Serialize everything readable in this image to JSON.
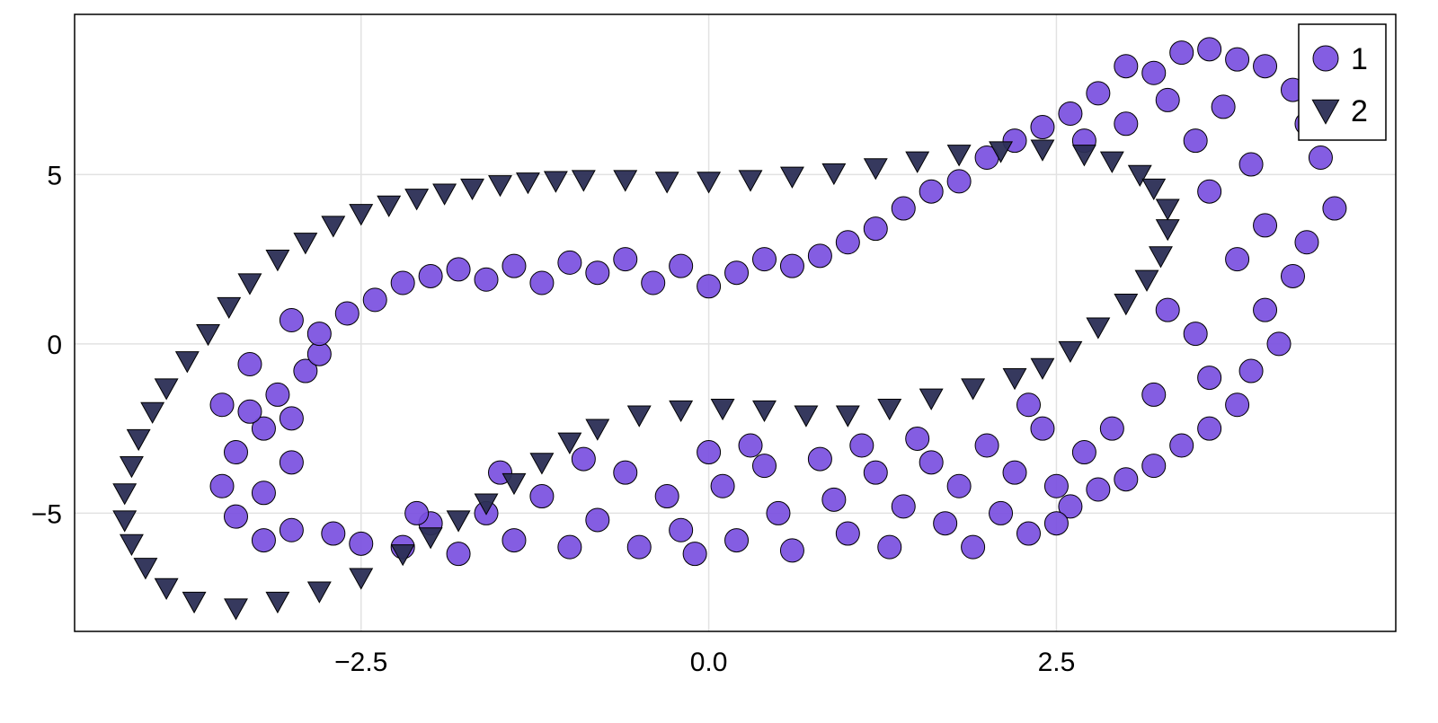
{
  "chart_data": {
    "type": "scatter",
    "title": "",
    "xlabel": "",
    "ylabel": "",
    "xlim": [
      -4.56,
      4.94
    ],
    "ylim": [
      -8.49,
      9.73
    ],
    "xticks": [
      -2.5,
      0.0,
      2.5
    ],
    "xtick_labels": [
      "−2.5",
      "0.0",
      "2.5"
    ],
    "yticks": [
      -5,
      0,
      5
    ],
    "ytick_labels": [
      "−5",
      "0",
      "5"
    ],
    "grid": true,
    "legend_position": "top-right",
    "series": [
      {
        "name": "1",
        "marker": "circle",
        "color": "#7a4fe0",
        "edge_color": "#000000",
        "points": [
          [
            -3.5,
            -1.8
          ],
          [
            -3.3,
            -0.6
          ],
          [
            -3.2,
            -2.5
          ],
          [
            -3.4,
            -3.2
          ],
          [
            -3.5,
            -4.2
          ],
          [
            -3.4,
            -5.1
          ],
          [
            -3.2,
            -4.4
          ],
          [
            -3.0,
            -3.5
          ],
          [
            -3.1,
            -1.5
          ],
          [
            -2.9,
            -0.8
          ],
          [
            -2.8,
            -0.3
          ],
          [
            -3.0,
            -5.5
          ],
          [
            -3.2,
            -5.8
          ],
          [
            -2.7,
            -5.6
          ],
          [
            -2.5,
            -5.9
          ],
          [
            -3.0,
            -2.2
          ],
          [
            -3.3,
            -2.0
          ],
          [
            -3.0,
            0.7
          ],
          [
            -2.8,
            0.3
          ],
          [
            -2.6,
            0.9
          ],
          [
            -2.4,
            1.3
          ],
          [
            -2.2,
            1.8
          ],
          [
            -2.0,
            2.0
          ],
          [
            -1.8,
            2.2
          ],
          [
            -1.6,
            1.9
          ],
          [
            -1.4,
            2.3
          ],
          [
            -1.2,
            1.8
          ],
          [
            -1.0,
            2.4
          ],
          [
            -0.8,
            2.1
          ],
          [
            -0.6,
            2.5
          ],
          [
            -0.4,
            1.8
          ],
          [
            -0.2,
            2.3
          ],
          [
            0.0,
            1.7
          ],
          [
            0.2,
            2.1
          ],
          [
            0.4,
            2.5
          ],
          [
            0.6,
            2.3
          ],
          [
            0.8,
            2.6
          ],
          [
            1.0,
            3.0
          ],
          [
            1.2,
            3.4
          ],
          [
            1.4,
            4.0
          ],
          [
            1.6,
            4.5
          ],
          [
            1.8,
            4.8
          ],
          [
            2.0,
            5.5
          ],
          [
            2.2,
            6.0
          ],
          [
            2.4,
            6.4
          ],
          [
            2.6,
            6.8
          ],
          [
            2.8,
            7.4
          ],
          [
            3.0,
            8.2
          ],
          [
            3.2,
            8.0
          ],
          [
            3.4,
            8.6
          ],
          [
            3.6,
            8.7
          ],
          [
            3.8,
            8.4
          ],
          [
            4.0,
            8.2
          ],
          [
            4.2,
            7.5
          ],
          [
            4.3,
            6.5
          ],
          [
            4.4,
            5.5
          ],
          [
            4.5,
            4.0
          ],
          [
            4.3,
            3.0
          ],
          [
            4.2,
            2.0
          ],
          [
            4.0,
            1.0
          ],
          [
            4.1,
            0.0
          ],
          [
            3.9,
            -0.8
          ],
          [
            3.8,
            -1.8
          ],
          [
            3.6,
            -2.5
          ],
          [
            3.4,
            -3.0
          ],
          [
            3.2,
            -3.6
          ],
          [
            3.0,
            -4.0
          ],
          [
            2.8,
            -4.3
          ],
          [
            2.6,
            -4.8
          ],
          [
            2.5,
            -5.3
          ],
          [
            3.3,
            1.0
          ],
          [
            3.5,
            0.3
          ],
          [
            3.6,
            -1.0
          ],
          [
            3.8,
            2.5
          ],
          [
            3.6,
            4.5
          ],
          [
            3.5,
            6.0
          ],
          [
            3.7,
            7.0
          ],
          [
            3.9,
            5.3
          ],
          [
            4.0,
            3.5
          ],
          [
            3.2,
            -1.5
          ],
          [
            2.9,
            -2.5
          ],
          [
            2.7,
            -3.2
          ],
          [
            2.3,
            -1.8
          ],
          [
            3.0,
            6.5
          ],
          [
            2.7,
            6.0
          ],
          [
            3.3,
            7.2
          ],
          [
            -2.2,
            -6.0
          ],
          [
            -2.0,
            -5.3
          ],
          [
            -1.8,
            -6.2
          ],
          [
            -1.6,
            -5.0
          ],
          [
            -1.4,
            -5.8
          ],
          [
            -1.2,
            -4.5
          ],
          [
            -1.0,
            -6.0
          ],
          [
            -0.8,
            -5.2
          ],
          [
            -0.6,
            -3.8
          ],
          [
            -0.5,
            -6.0
          ],
          [
            -0.3,
            -4.5
          ],
          [
            -0.2,
            -5.5
          ],
          [
            0.0,
            -3.2
          ],
          [
            0.1,
            -4.2
          ],
          [
            0.2,
            -5.8
          ],
          [
            0.4,
            -3.6
          ],
          [
            0.5,
            -5.0
          ],
          [
            0.6,
            -6.1
          ],
          [
            0.8,
            -3.4
          ],
          [
            0.9,
            -4.6
          ],
          [
            1.0,
            -5.6
          ],
          [
            1.2,
            -3.8
          ],
          [
            1.3,
            -6.0
          ],
          [
            1.4,
            -4.8
          ],
          [
            1.6,
            -3.5
          ],
          [
            1.7,
            -5.3
          ],
          [
            1.8,
            -4.2
          ],
          [
            1.9,
            -6.0
          ],
          [
            2.0,
            -3.0
          ],
          [
            2.1,
            -5.0
          ],
          [
            2.2,
            -3.8
          ],
          [
            2.3,
            -5.6
          ],
          [
            2.4,
            -2.5
          ],
          [
            2.5,
            -4.2
          ],
          [
            -1.5,
            -3.8
          ],
          [
            -0.9,
            -3.4
          ],
          [
            -2.1,
            -5.0
          ],
          [
            0.3,
            -3.0
          ],
          [
            1.1,
            -3.0
          ],
          [
            1.5,
            -2.8
          ],
          [
            -0.1,
            -6.2
          ]
        ]
      },
      {
        "name": "2",
        "marker": "triangle-down",
        "color": "#2b2e55",
        "edge_color": "#000000",
        "points": [
          [
            -2.5,
            3.85
          ],
          [
            -2.3,
            4.1
          ],
          [
            -2.1,
            4.3
          ],
          [
            -1.9,
            4.45
          ],
          [
            -1.7,
            4.6
          ],
          [
            -1.5,
            4.7
          ],
          [
            -1.3,
            4.78
          ],
          [
            -1.1,
            4.82
          ],
          [
            -0.9,
            4.85
          ],
          [
            -0.6,
            4.85
          ],
          [
            -0.3,
            4.8
          ],
          [
            0.0,
            4.8
          ],
          [
            0.3,
            4.85
          ],
          [
            0.6,
            4.95
          ],
          [
            0.9,
            5.05
          ],
          [
            1.2,
            5.2
          ],
          [
            1.5,
            5.4
          ],
          [
            1.8,
            5.6
          ],
          [
            2.1,
            5.7
          ],
          [
            2.4,
            5.75
          ],
          [
            2.7,
            5.6
          ],
          [
            2.9,
            5.4
          ],
          [
            3.1,
            5.0
          ],
          [
            3.2,
            4.6
          ],
          [
            3.3,
            4.0
          ],
          [
            3.3,
            3.4
          ],
          [
            3.25,
            2.6
          ],
          [
            3.15,
            1.9
          ],
          [
            3.0,
            1.2
          ],
          [
            2.8,
            0.5
          ],
          [
            2.6,
            -0.2
          ],
          [
            2.4,
            -0.7
          ],
          [
            2.2,
            -1.0
          ],
          [
            1.9,
            -1.3
          ],
          [
            1.6,
            -1.6
          ],
          [
            1.3,
            -1.9
          ],
          [
            1.0,
            -2.1
          ],
          [
            0.7,
            -2.1
          ],
          [
            0.4,
            -1.95
          ],
          [
            0.1,
            -1.9
          ],
          [
            -0.2,
            -1.95
          ],
          [
            -0.5,
            -2.1
          ],
          [
            -0.8,
            -2.5
          ],
          [
            -1.0,
            -2.9
          ],
          [
            -1.2,
            -3.5
          ],
          [
            -1.4,
            -4.1
          ],
          [
            -1.6,
            -4.7
          ],
          [
            -1.8,
            -5.2
          ],
          [
            -2.0,
            -5.7
          ],
          [
            -2.2,
            -6.2
          ],
          [
            -2.5,
            -6.9
          ],
          [
            -2.8,
            -7.3
          ],
          [
            -3.1,
            -7.6
          ],
          [
            -3.4,
            -7.8
          ],
          [
            -3.7,
            -7.6
          ],
          [
            -3.9,
            -7.2
          ],
          [
            -4.05,
            -6.6
          ],
          [
            -4.15,
            -5.9
          ],
          [
            -4.2,
            -5.2
          ],
          [
            -4.2,
            -4.4
          ],
          [
            -4.15,
            -3.6
          ],
          [
            -4.1,
            -2.8
          ],
          [
            -4.0,
            -2.0
          ],
          [
            -3.9,
            -1.3
          ],
          [
            -3.75,
            -0.5
          ],
          [
            -3.6,
            0.3
          ],
          [
            -3.45,
            1.1
          ],
          [
            -3.3,
            1.8
          ],
          [
            -3.1,
            2.5
          ],
          [
            -2.9,
            3.0
          ],
          [
            -2.7,
            3.5
          ]
        ]
      }
    ]
  }
}
